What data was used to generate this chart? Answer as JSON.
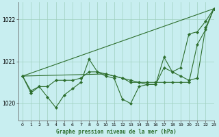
{
  "title": "Graphe pression niveau de la mer (hPa)",
  "background_color": "#c8eef0",
  "plot_bg_color": "#c8eef0",
  "grid_color": "#a0d0c0",
  "line_color": "#2d6e2d",
  "xlim": [
    -0.5,
    23
  ],
  "ylim": [
    1019.6,
    1022.4
  ],
  "yticks": [
    1020,
    1021,
    1022
  ],
  "xticks": [
    0,
    1,
    2,
    3,
    4,
    5,
    6,
    7,
    8,
    9,
    10,
    11,
    12,
    13,
    14,
    15,
    16,
    17,
    18,
    19,
    20,
    21,
    22,
    23
  ],
  "series": [
    {
      "x": [
        0,
        1,
        2,
        3,
        4,
        5,
        6,
        7,
        8,
        9,
        10,
        11,
        12,
        13,
        14,
        15,
        16,
        17,
        18,
        19,
        20,
        21,
        22,
        23
      ],
      "y": [
        1020.65,
        1020.3,
        1020.4,
        1020.4,
        1020.55,
        1020.55,
        1020.55,
        1020.6,
        1020.75,
        1020.75,
        1020.7,
        1020.65,
        1020.6,
        1020.55,
        1020.5,
        1020.5,
        1020.5,
        1020.5,
        1020.5,
        1020.5,
        1020.5,
        1021.4,
        1021.75,
        1022.25
      ]
    },
    {
      "x": [
        0,
        1,
        2,
        3,
        4,
        5,
        6,
        7,
        8,
        9,
        10,
        11,
        12,
        13,
        14,
        15,
        16,
        17,
        18,
        19,
        20,
        21,
        22,
        23
      ],
      "y": [
        1020.65,
        1020.25,
        1020.4,
        1020.15,
        1019.9,
        1020.2,
        1020.35,
        1020.5,
        1021.05,
        1020.75,
        1020.65,
        1020.6,
        1020.1,
        1020.0,
        1020.4,
        1020.45,
        1020.45,
        1020.85,
        1020.75,
        1020.85,
        1021.65,
        1021.7,
        1021.95,
        1022.25
      ]
    },
    {
      "x": [
        0,
        23
      ],
      "y": [
        1020.65,
        1022.25
      ]
    },
    {
      "x": [
        0,
        10,
        11,
        12,
        13,
        14,
        15,
        16,
        17,
        18,
        19,
        20,
        21,
        22,
        23
      ],
      "y": [
        1020.65,
        1020.7,
        1020.65,
        1020.6,
        1020.5,
        1020.5,
        1020.45,
        1020.45,
        1021.1,
        1020.75,
        1020.65,
        1020.55,
        1020.6,
        1021.8,
        1022.25
      ]
    }
  ]
}
